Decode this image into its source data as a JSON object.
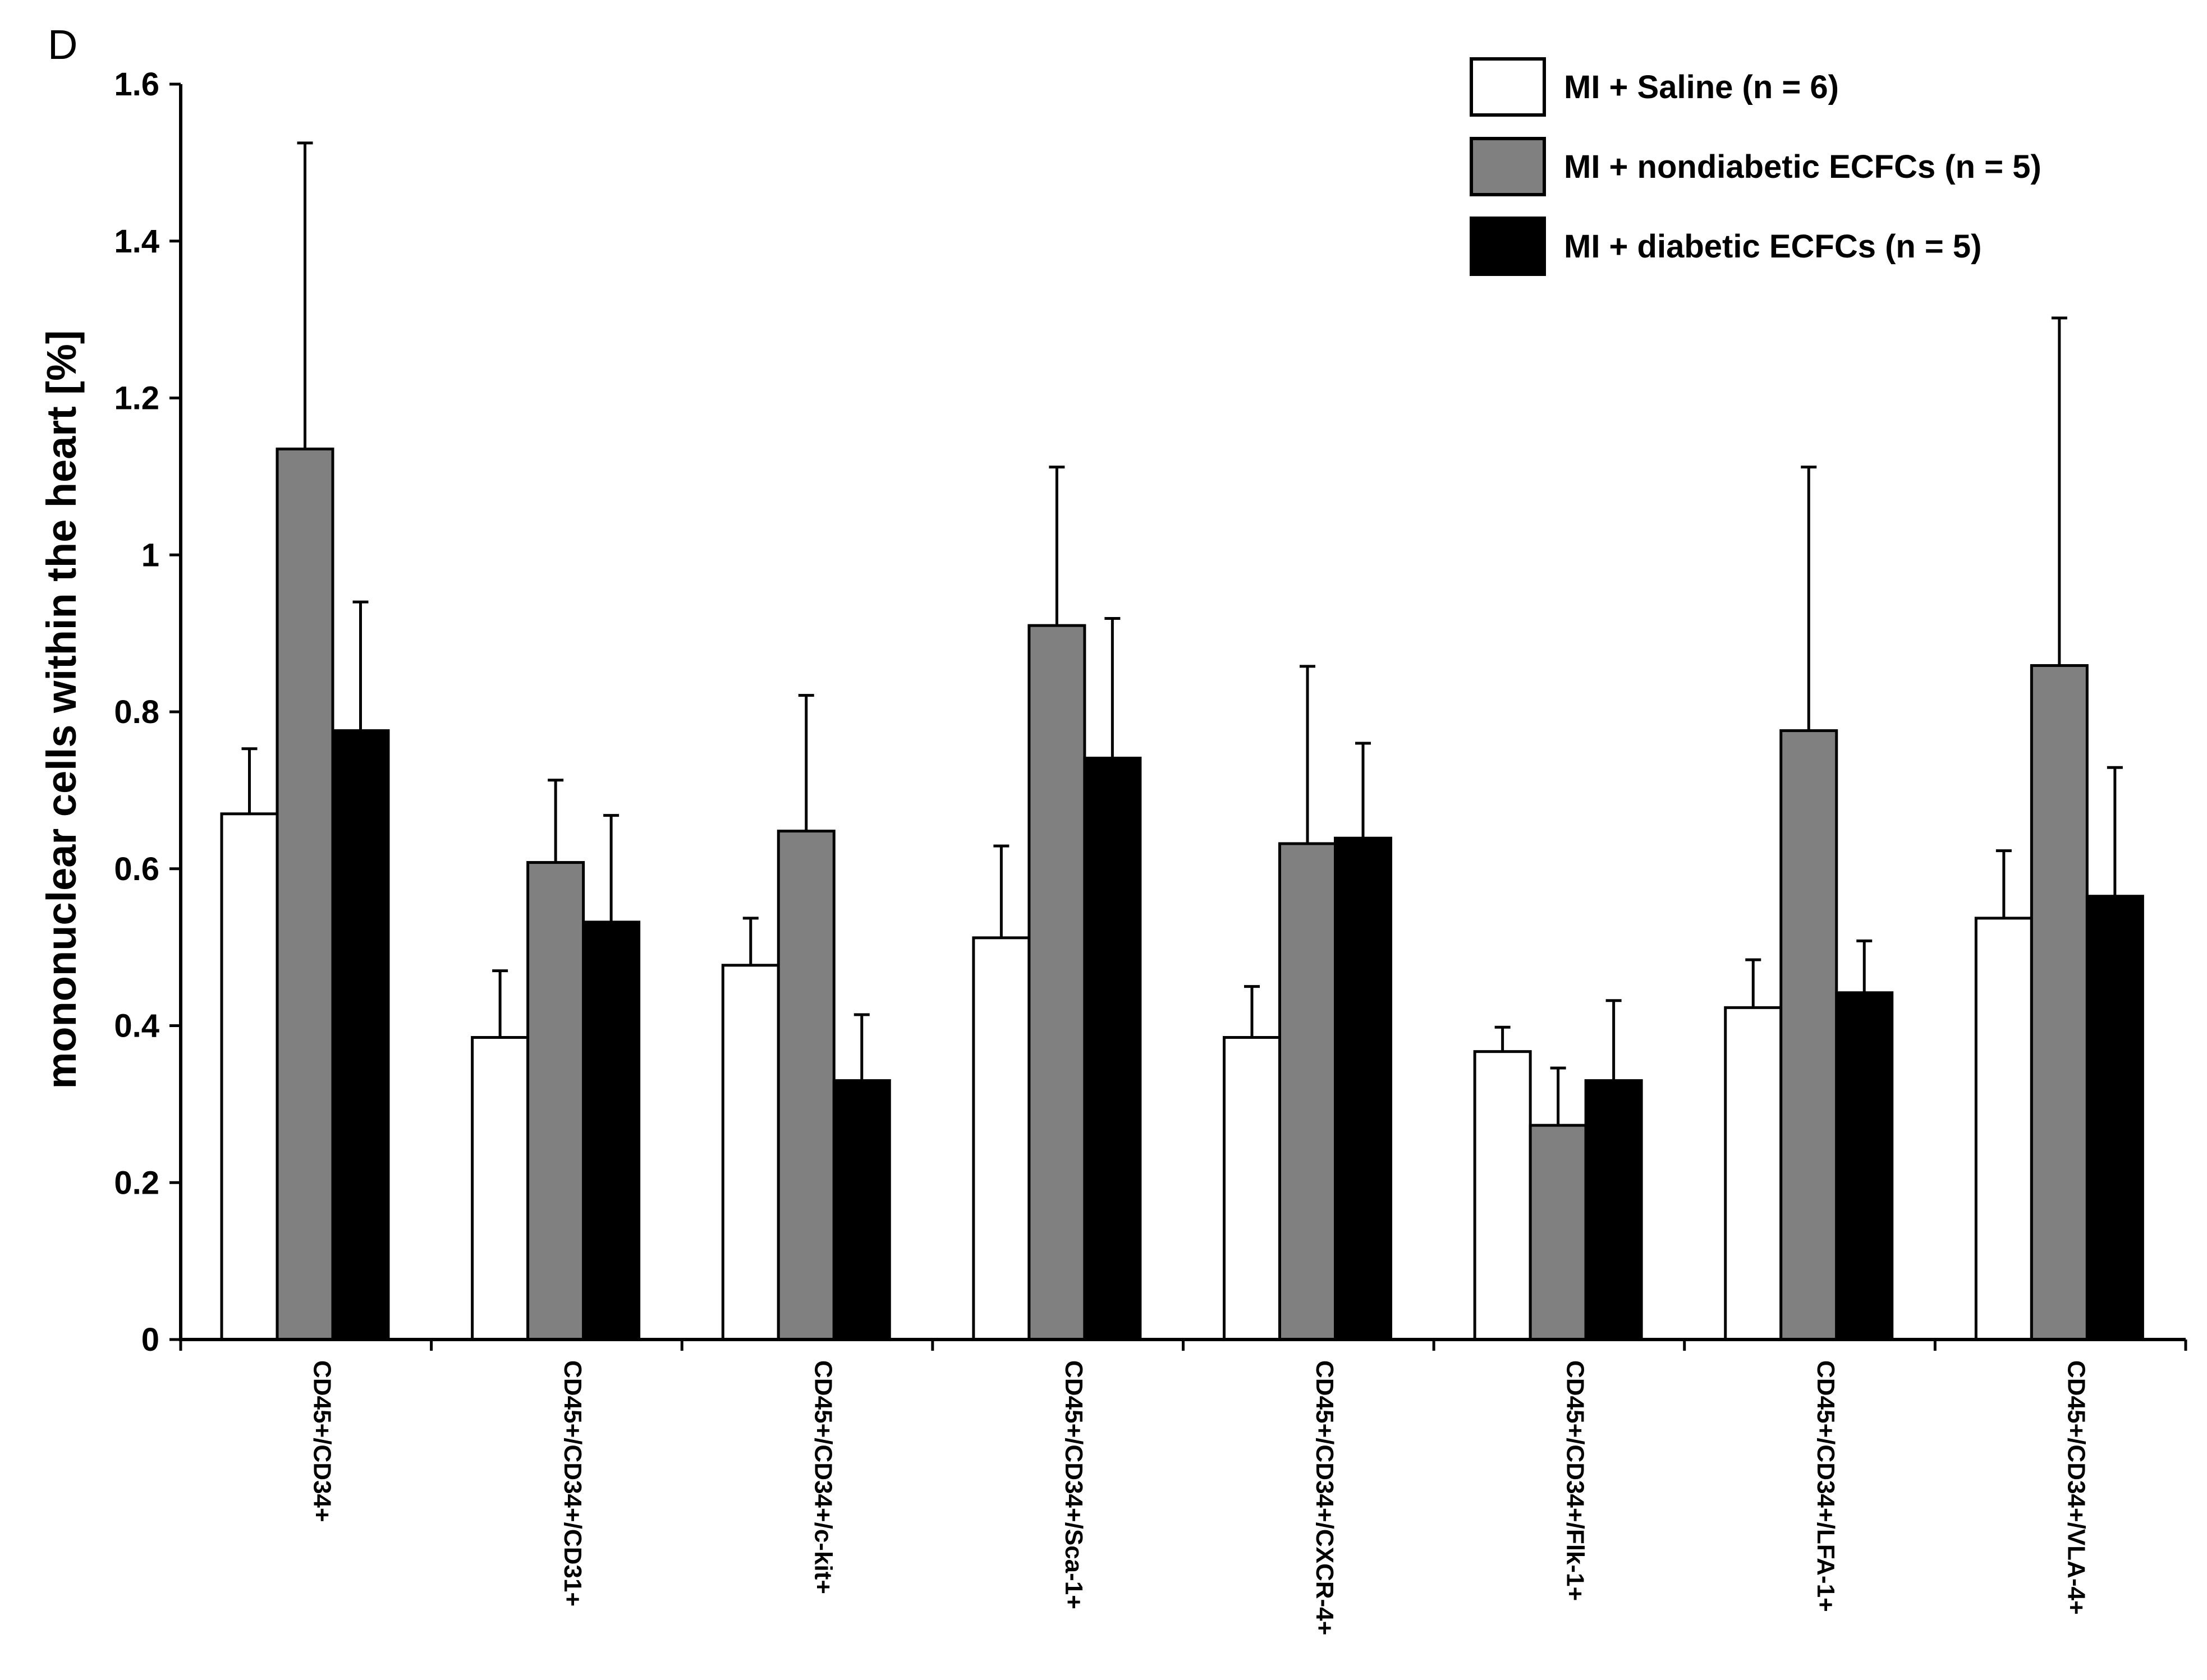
{
  "figure": {
    "panel_letter": "D"
  },
  "chart_data": {
    "type": "bar",
    "title": "",
    "xlabel": "",
    "ylabel": "mononuclear cells within the heart [%]",
    "ylim": [
      0,
      1.6
    ],
    "yticks": [
      0,
      0.2,
      0.4,
      0.6,
      0.8,
      1,
      1.2,
      1.4,
      1.6
    ],
    "ytick_labels": [
      "0",
      "0.2",
      "0.4",
      "0.6",
      "0.8",
      "1",
      "1.2",
      "1.4",
      "1.6"
    ],
    "grid": false,
    "legend_position": "top-right",
    "categories": [
      "CD45+/CD34+",
      "CD45+/CD34+/CD31+",
      "CD45+/CD34+/c-kit+",
      "CD45+/CD34+/Sca-1+",
      "CD45+/CD34+/CXCR-4+",
      "CD45+/CD34+/Flk-1+",
      "CD45+/CD34+/LFA-1+",
      "CD45+/CD34+/VLA-4+"
    ],
    "series": [
      {
        "name": "MI + Saline (n = 6)",
        "color": "#ffffff",
        "values": [
          0.67,
          0.385,
          0.477,
          0.512,
          0.385,
          0.367,
          0.423,
          0.537
        ],
        "errors": [
          0.083,
          0.085,
          0.06,
          0.117,
          0.065,
          0.031,
          0.061,
          0.086
        ]
      },
      {
        "name": "MI + nondiabetic ECFCs (n = 5)",
        "color": "#808080",
        "values": [
          1.135,
          0.608,
          0.648,
          0.91,
          0.632,
          0.273,
          0.776,
          0.859
        ],
        "errors": [
          0.39,
          0.105,
          0.173,
          0.202,
          0.226,
          0.073,
          0.336,
          0.443
        ]
      },
      {
        "name": "MI + diabetic ECFCs (n = 5)",
        "color": "#000000",
        "values": [
          0.776,
          0.532,
          0.33,
          0.741,
          0.639,
          0.33,
          0.442,
          0.565
        ],
        "errors": [
          0.164,
          0.136,
          0.084,
          0.178,
          0.121,
          0.102,
          0.066,
          0.164
        ]
      }
    ]
  }
}
